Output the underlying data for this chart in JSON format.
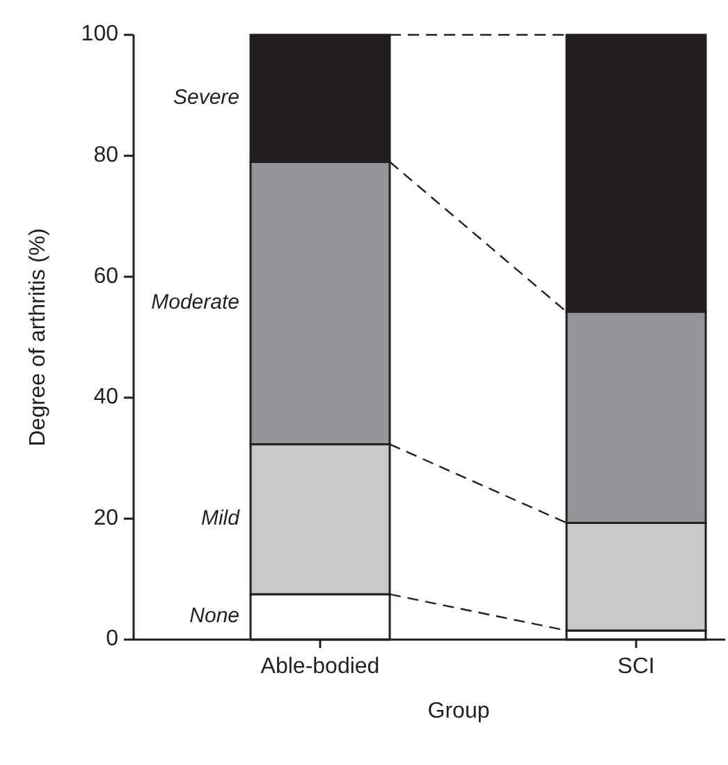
{
  "chart_data": {
    "type": "bar",
    "stacked": true,
    "xlabel": "Group",
    "ylabel": "Degree of arthritis (%)",
    "categories": [
      "Able-bodied",
      "SCI"
    ],
    "ylim": [
      0,
      100
    ],
    "yticks": [
      0,
      20,
      40,
      60,
      80,
      100
    ],
    "grid": false,
    "legend": false,
    "series": [
      {
        "name": "None",
        "color": "#ffffff",
        "values": [
          7.5,
          1.5
        ]
      },
      {
        "name": "Mild",
        "color": "#c8c9cb",
        "values": [
          24.8,
          17.8
        ]
      },
      {
        "name": "Moderate",
        "color": "#939598",
        "values": [
          46.7,
          34.9
        ]
      },
      {
        "name": "Severe",
        "color": "#231f20",
        "values": [
          21,
          45.8
        ]
      }
    ]
  }
}
